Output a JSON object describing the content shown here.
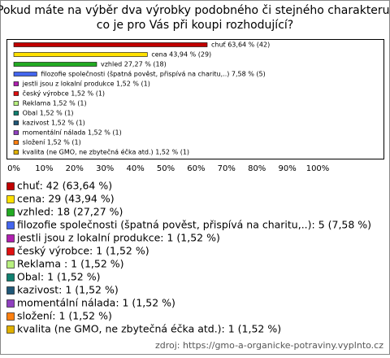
{
  "chart_data": {
    "type": "bar",
    "orientation": "horizontal",
    "title": [
      "Pokud máte na výběr dva výrobky podobného či stejného charakteru,",
      "co je pro Vás při koupi rozhodující?"
    ],
    "categories": [
      "chuť",
      "cena",
      "vzhled",
      "filozofie společnosti (špatná pověst, přispívá na charitu,..)",
      "jestli jsou z lokalní produkce",
      "český výrobce",
      "Reklama ",
      "Obal",
      "kazivost",
      "momentální nálada",
      "složení",
      "kvalita (ne GMO, ne zbytečná éčka atd.)"
    ],
    "values": [
      63.64,
      43.94,
      27.27,
      7.58,
      1.52,
      1.52,
      1.52,
      1.52,
      1.52,
      1.52,
      1.52,
      1.52
    ],
    "value_labels": [
      "chuť 63,64 % (42)",
      "cena 43,94 % (29)",
      "vzhled 27,27 % (18)",
      "filozofie společnosti (špatná pověst, přispívá na charitu,..) 7,58 % (5)",
      "jestli jsou z lokalní produkce 1,52 % (1)",
      "český výrobce 1,52 % (1)",
      "Reklama  1,52 % (1)",
      "Obal 1,52 % (1)",
      "kazivost 1,52 % (1)",
      "momentální nálada 1,52 % (1)",
      "složení 1,52 % (1)",
      "kvalita (ne GMO, ne zbytečná éčka atd.) 1,52 % (1)"
    ],
    "legend_labels": [
      "chuť: 42 (63,64 %)",
      "cena: 29 (43,94 %)",
      "vzhled: 18 (27,27 %)",
      "filozofie společnosti (špatná pověst, přispívá na charitu,..): 5 (7,58 %)",
      "jestli jsou z lokalní produkce: 1 (1,52 %)",
      "český výrobce: 1 (1,52 %)",
      "Reklama : 1 (1,52 %)",
      "Obal: 1 (1,52 %)",
      "kazivost: 1 (1,52 %)",
      "momentální nálada: 1 (1,52 %)",
      "složení: 1 (1,52 %)",
      "kvalita (ne GMO, ne zbytečná éčka atd.): 1 (1,52 %)"
    ],
    "colors": [
      "#c00000",
      "#ffe000",
      "#22aa22",
      "#4466ee",
      "#b020b0",
      "#e01010",
      "#b8f080",
      "#108070",
      "#205878",
      "#9040c0",
      "#ff8010",
      "#e0b000"
    ],
    "xlim": [
      0,
      100
    ],
    "xticks": [
      {
        "value": 0,
        "label": "0%"
      },
      {
        "value": 10,
        "label": "10%"
      },
      {
        "value": 20,
        "label": "20%"
      },
      {
        "value": 30,
        "label": "30%"
      },
      {
        "value": 40,
        "label": "40%"
      },
      {
        "value": 50,
        "label": "50%"
      },
      {
        "value": 60,
        "label": "60%"
      },
      {
        "value": 70,
        "label": "70%"
      },
      {
        "value": 80,
        "label": "80%"
      },
      {
        "value": 90,
        "label": "90%"
      },
      {
        "value": 100,
        "label": "100%"
      }
    ],
    "source": "zdroj: https://gmo-a-organicke-potraviny.vyplnto.cz"
  }
}
